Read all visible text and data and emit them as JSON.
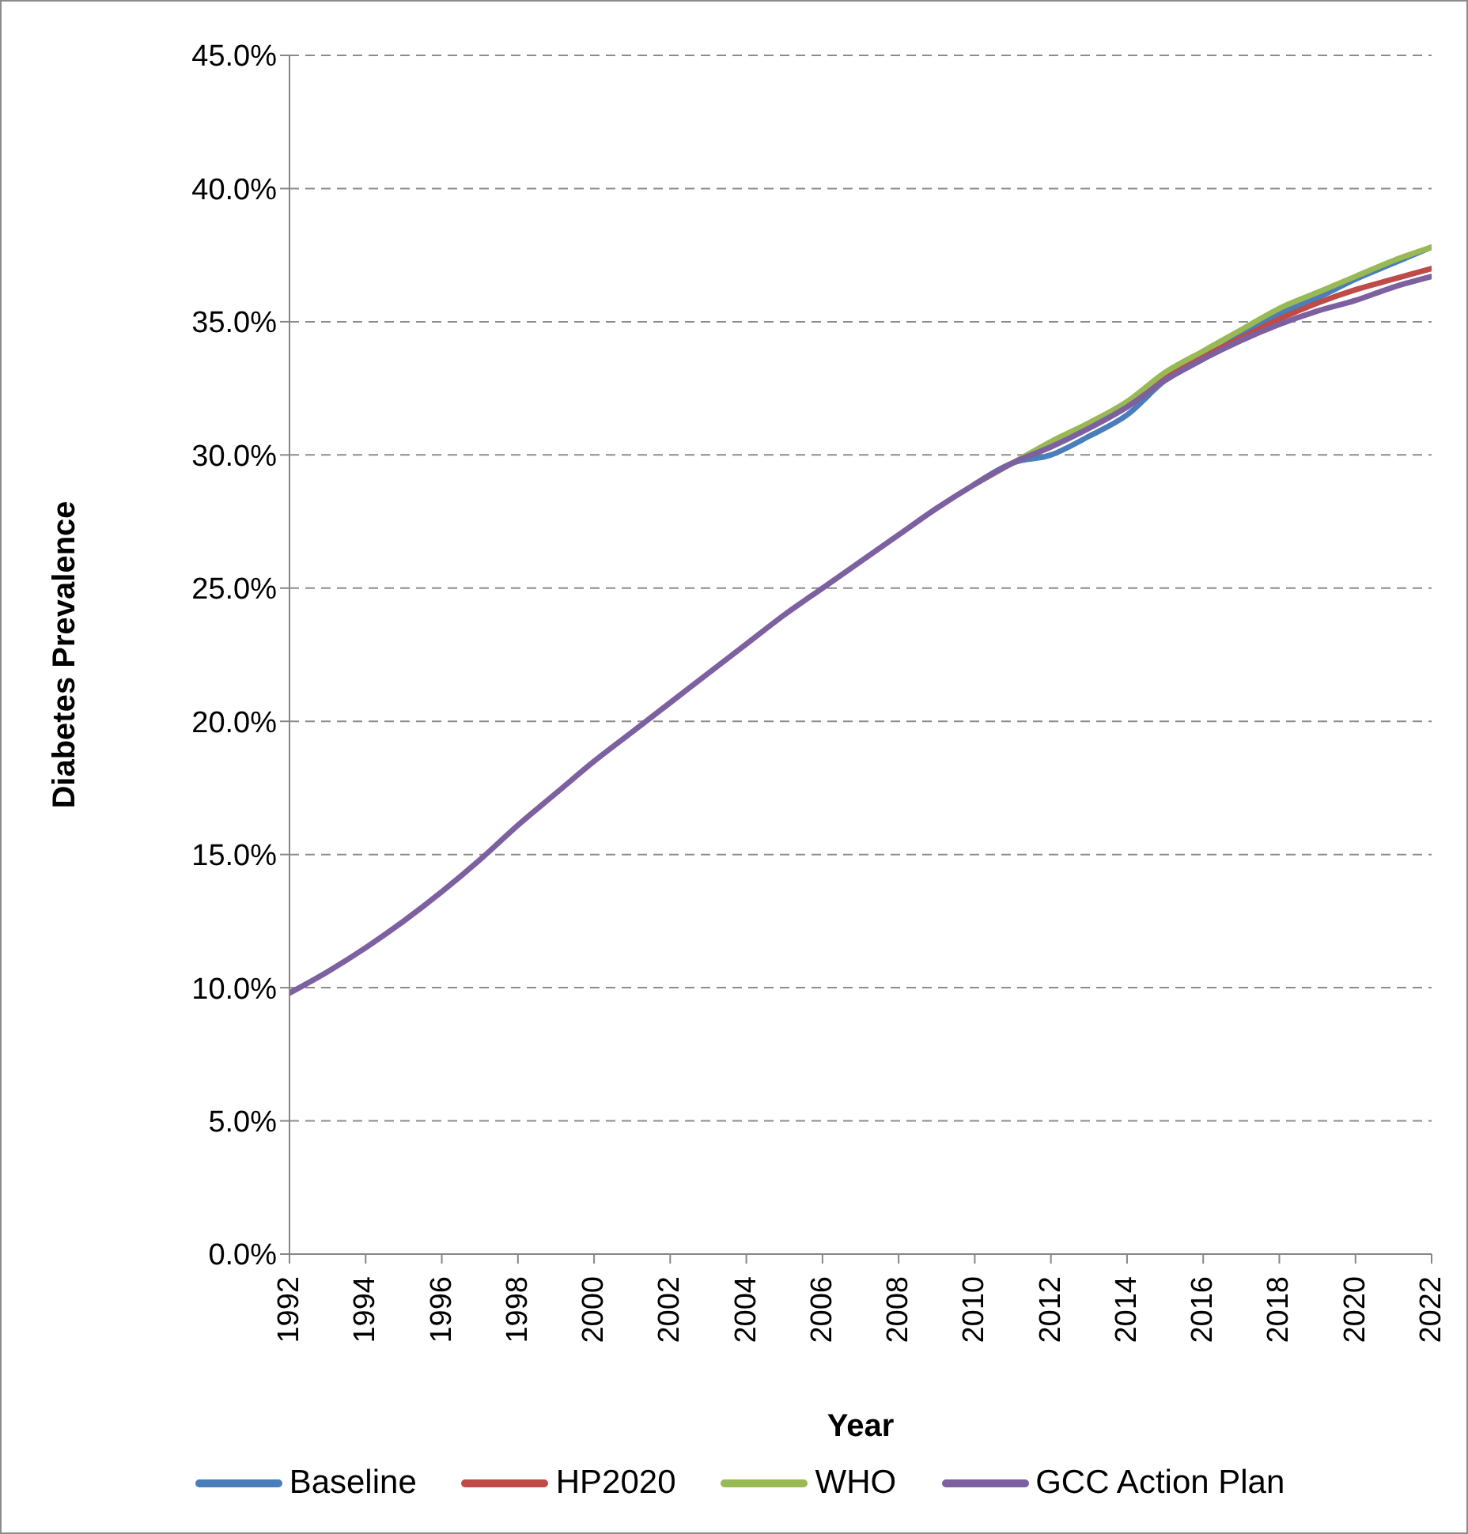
{
  "chart_data": {
    "type": "line",
    "xlabel": "Year",
    "ylabel": "Diabetes  Prevalence",
    "x": [
      1992,
      1993,
      1994,
      1995,
      1996,
      1997,
      1998,
      1999,
      2000,
      2001,
      2002,
      2003,
      2004,
      2005,
      2006,
      2007,
      2008,
      2009,
      2010,
      2011,
      2012,
      2013,
      2014,
      2015,
      2016,
      2017,
      2018,
      2019,
      2020,
      2021,
      2022
    ],
    "series": [
      {
        "name": "Baseline",
        "color": "#4a7ebb",
        "values": [
          null,
          null,
          null,
          null,
          null,
          null,
          null,
          null,
          null,
          null,
          null,
          null,
          null,
          null,
          null,
          null,
          null,
          null,
          28.9,
          29.7,
          30.0,
          30.7,
          31.5,
          32.8,
          33.6,
          34.5,
          35.3,
          35.9,
          36.6,
          37.2,
          37.8
        ]
      },
      {
        "name": "HP2020",
        "color": "#be4b48",
        "values": [
          null,
          null,
          null,
          null,
          null,
          null,
          null,
          null,
          null,
          null,
          null,
          null,
          null,
          null,
          null,
          null,
          null,
          null,
          null,
          null,
          null,
          null,
          31.9,
          32.9,
          33.7,
          34.4,
          35.1,
          35.7,
          36.2,
          36.6,
          37.0
        ]
      },
      {
        "name": "WHO",
        "color": "#98b954",
        "values": [
          null,
          null,
          null,
          null,
          null,
          null,
          null,
          null,
          null,
          null,
          null,
          null,
          null,
          null,
          null,
          null,
          null,
          null,
          28.9,
          29.7,
          30.5,
          31.2,
          32.0,
          33.1,
          33.9,
          34.7,
          35.5,
          36.1,
          36.7,
          37.3,
          37.8
        ]
      },
      {
        "name": "GCC Action Plan",
        "color": "#7d60a0",
        "values": [
          9.8,
          10.6,
          11.5,
          12.5,
          13.6,
          14.8,
          16.1,
          17.3,
          18.5,
          19.6,
          20.7,
          21.8,
          22.9,
          24.0,
          25.0,
          26.0,
          27.0,
          28.0,
          28.9,
          29.7,
          30.3,
          31.0,
          31.8,
          32.8,
          33.6,
          34.3,
          34.9,
          35.4,
          35.8,
          36.3,
          36.7
        ]
      }
    ],
    "xlim": [
      1992,
      2022
    ],
    "xticks": [
      1992,
      1994,
      1996,
      1998,
      2000,
      2002,
      2004,
      2006,
      2008,
      2010,
      2012,
      2014,
      2016,
      2018,
      2020,
      2022
    ],
    "ylim": [
      0,
      45
    ],
    "yticks": [
      {
        "value": 0,
        "label": "0.0%"
      },
      {
        "value": 5,
        "label": "5.0%"
      },
      {
        "value": 10,
        "label": "10.0%"
      },
      {
        "value": 15,
        "label": "15.0%"
      },
      {
        "value": 20,
        "label": "20.0%"
      },
      {
        "value": 25,
        "label": "25.0%"
      },
      {
        "value": 30,
        "label": "30.0%"
      },
      {
        "value": 35,
        "label": "35.0%"
      },
      {
        "value": 40,
        "label": "40.0%"
      },
      {
        "value": 45,
        "label": "45.0%"
      }
    ],
    "grid": "y",
    "legend": "bottom",
    "marker": "none",
    "line_style": "solid"
  }
}
